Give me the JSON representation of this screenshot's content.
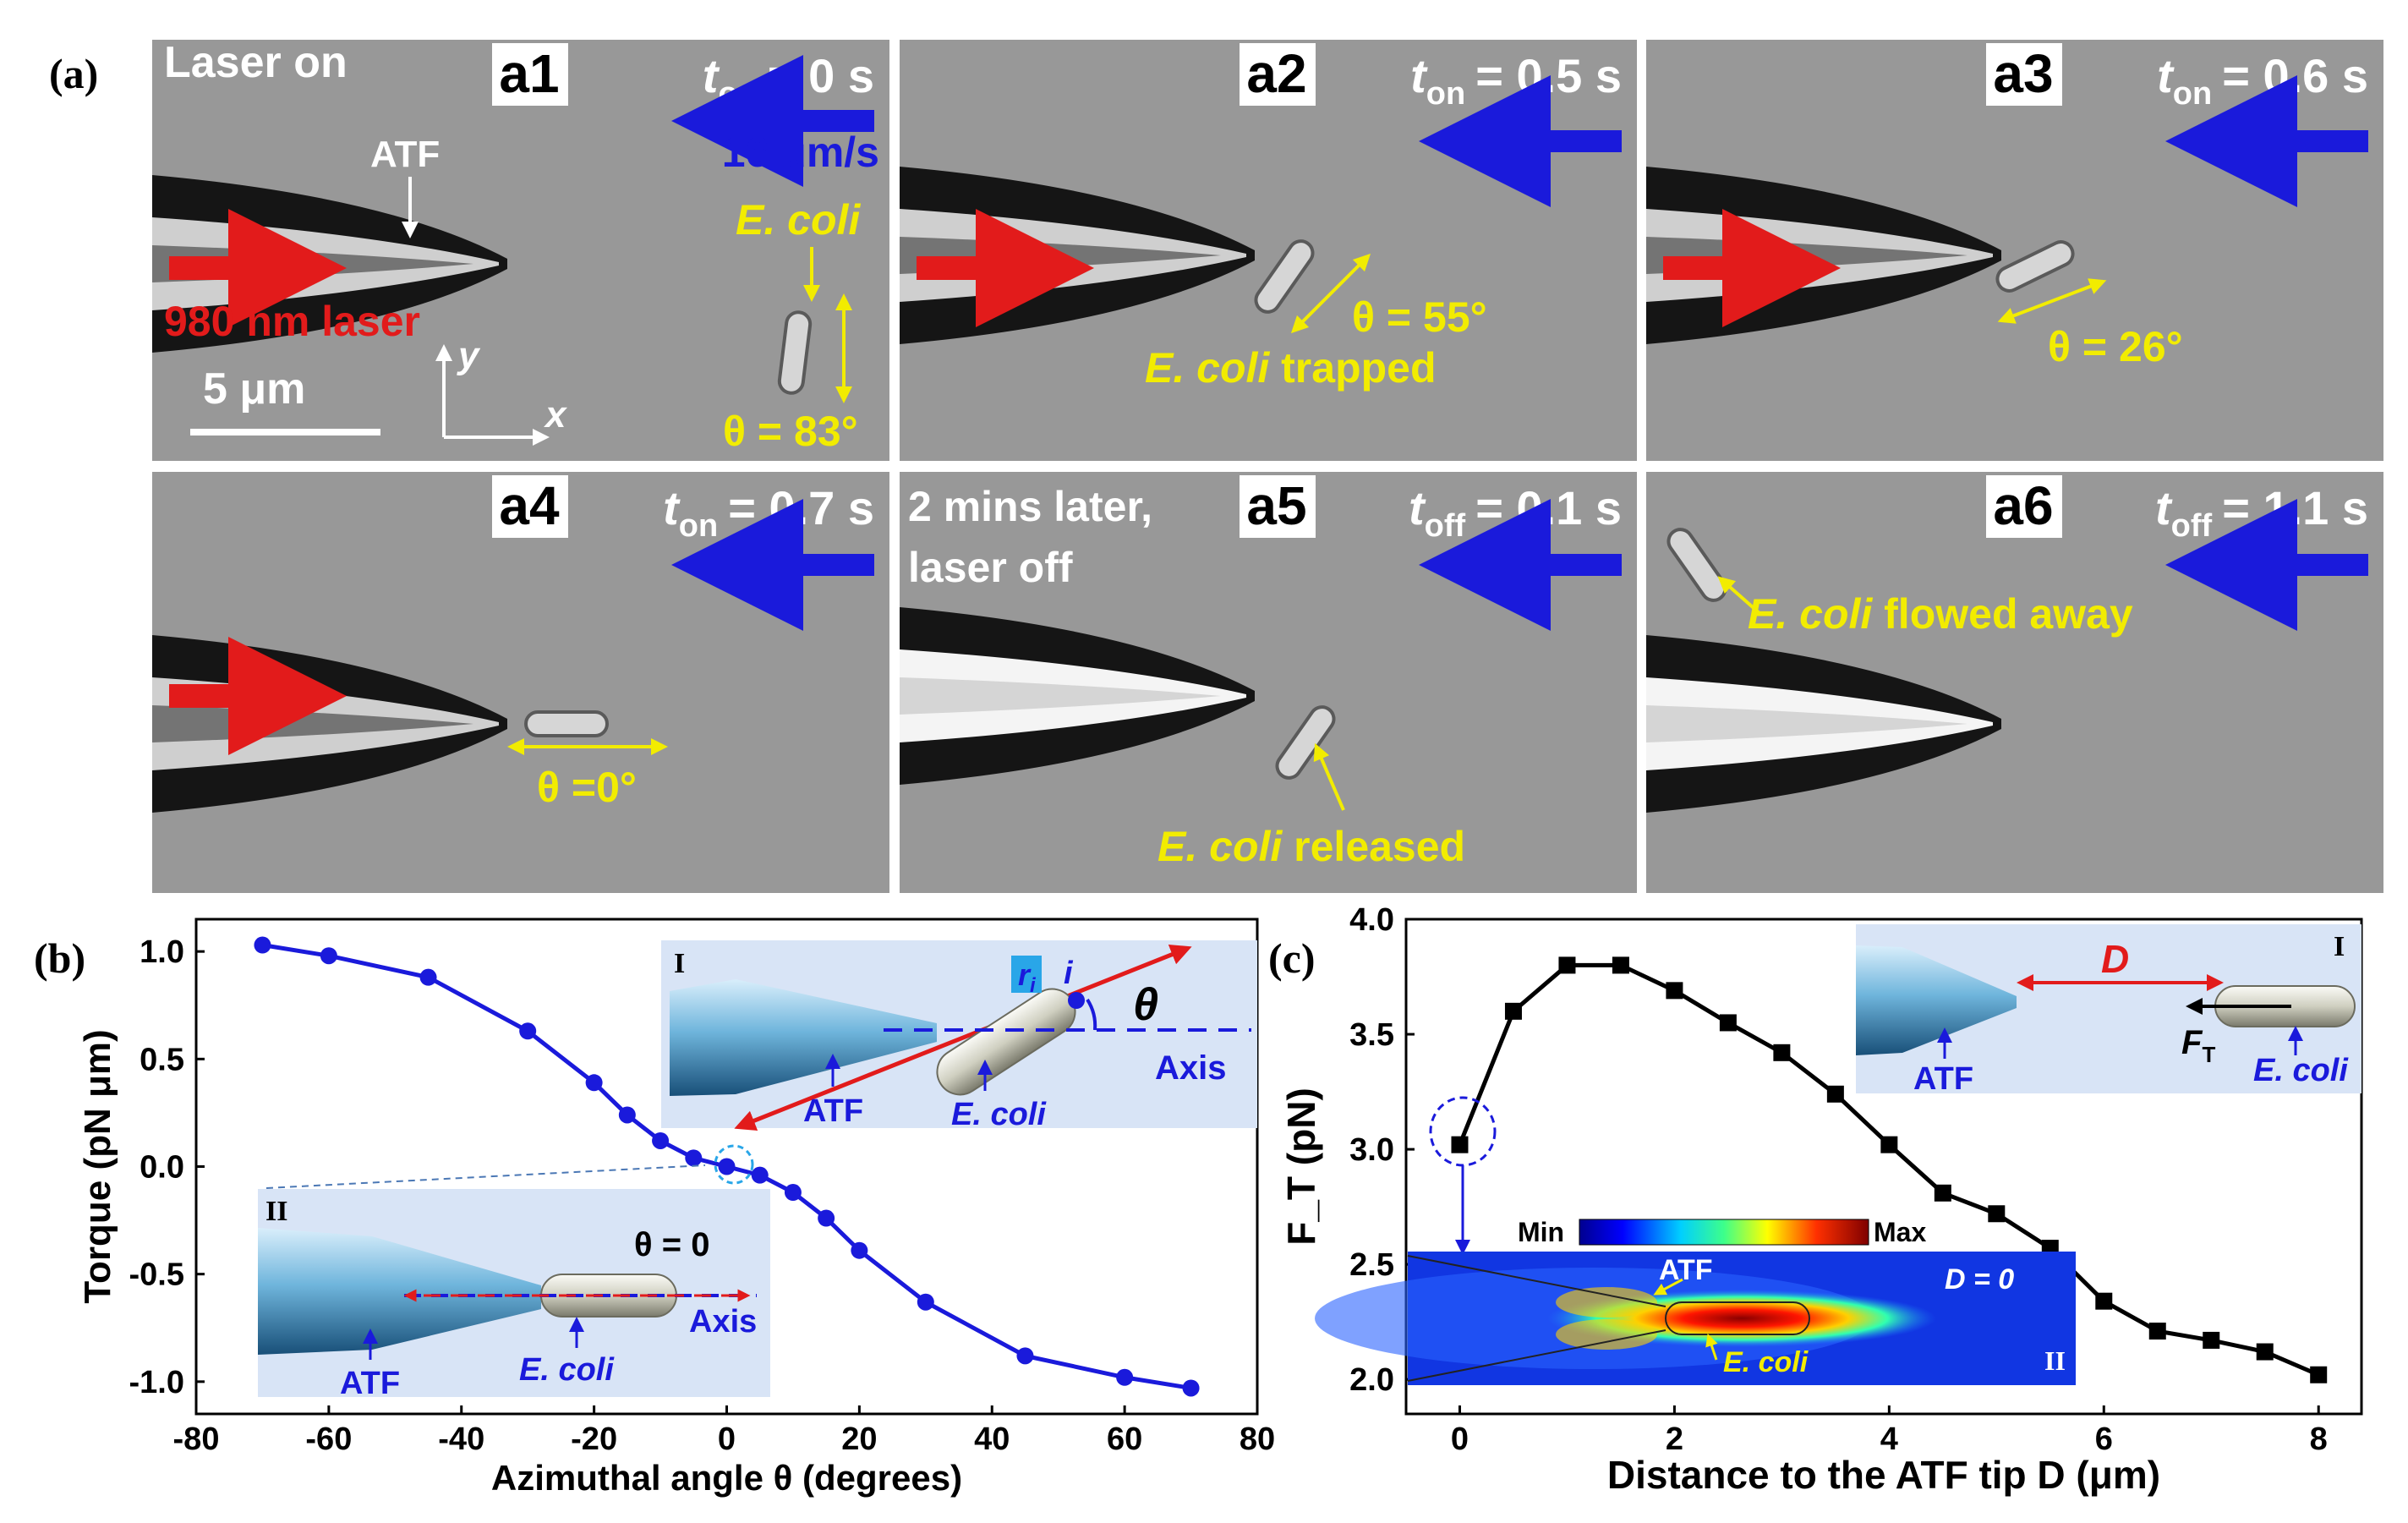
{
  "panel_a": {
    "label": "(a)",
    "frames": [
      {
        "tag": "a1",
        "time_var": "t",
        "time_sub": "on",
        "time_val": "= 0 s",
        "flow_speed": "16 μm/s",
        "note": "Laser on",
        "atf": "ATF",
        "laser": "980 nm laser",
        "ecoli": "E. coli",
        "theta": "θ = 83°",
        "scale": "5 μm",
        "ax_y": "y",
        "ax_x": "x"
      },
      {
        "tag": "a2",
        "time_var": "t",
        "time_sub": "on",
        "time_val": "= 0.5 s",
        "theta": "θ = 55°",
        "caption_i": "E. coli",
        "caption": " trapped"
      },
      {
        "tag": "a3",
        "time_var": "t",
        "time_sub": "on",
        "time_val": "= 0.6 s",
        "theta": "θ = 26°"
      },
      {
        "tag": "a4",
        "time_var": "t",
        "time_sub": "on",
        "time_val": "= 0.7 s",
        "theta": "θ =0°"
      },
      {
        "tag": "a5",
        "time_var": "t",
        "time_sub": "off",
        "time_val": "= 0.1 s",
        "note": "2 mins later,",
        "note2": "laser off",
        "caption_i": "E. coli",
        "caption": " released"
      },
      {
        "tag": "a6",
        "time_var": "t",
        "time_sub": "off",
        "time_val": "= 1.1 s",
        "caption_i": "E. coli",
        "caption": " flowed away"
      }
    ]
  },
  "panel_b": {
    "label": "(b)",
    "inset1": {
      "roman": "I",
      "atf": "ATF",
      "ecoli": "E. coli",
      "axis": "Axis",
      "theta": "θ",
      "r": "r",
      "r_sub": "i",
      "i": "i"
    },
    "inset2": {
      "roman": "II",
      "atf": "ATF",
      "ecoli": "E. coli",
      "axis": "Axis",
      "theta": "θ = 0"
    }
  },
  "panel_c": {
    "label": "(c)",
    "inset1": {
      "roman": "I",
      "D": "D",
      "F": "F",
      "F_sub": "T",
      "atf": "ATF",
      "ecoli": "E. coli"
    },
    "inset2": {
      "roman": "II",
      "min": "Min",
      "max": "Max",
      "atf": "ATF",
      "ecoli": "E. coli",
      "dlabel": "D = 0"
    }
  },
  "chart_data": [
    {
      "type": "line",
      "title": "",
      "xlabel": "Azimuthal angle θ (degrees)",
      "ylabel": "Torque (pN μm)",
      "xlim": [
        -80,
        80
      ],
      "ylim": [
        -1.15,
        1.15
      ],
      "xticks": [
        -80,
        -60,
        -40,
        -20,
        0,
        20,
        40,
        60,
        80
      ],
      "yticks": [
        1.0,
        0.5,
        0.0,
        -0.5,
        -1.0
      ],
      "ytick_labels": [
        "1.0",
        "0.5",
        "0.0",
        "-0.5",
        "-1.0"
      ],
      "color": "#1a1adb",
      "x": [
        -70,
        -60,
        -45,
        -30,
        -20,
        -15,
        -10,
        -5,
        0,
        5,
        10,
        15,
        20,
        30,
        45,
        60,
        70
      ],
      "y": [
        1.03,
        0.98,
        0.88,
        0.63,
        0.39,
        0.24,
        0.12,
        0.04,
        0.0,
        -0.04,
        -0.12,
        -0.24,
        -0.39,
        -0.63,
        -0.88,
        -0.98,
        -1.03
      ]
    },
    {
      "type": "line",
      "title": "",
      "xlabel": "Distance to the ATF tip D (μm)",
      "ylabel": "F_T (pN)",
      "xlim": [
        -0.5,
        8.4
      ],
      "ylim": [
        1.85,
        4.0
      ],
      "xticks": [
        0,
        2,
        4,
        6,
        8
      ],
      "yticks": [
        2.0,
        2.5,
        3.0,
        3.5,
        4.0
      ],
      "ytick_labels": [
        "2.0",
        "2.5",
        "3.0",
        "3.5",
        "4.0"
      ],
      "color": "#000000",
      "x": [
        0,
        0.5,
        1,
        1.5,
        2,
        2.5,
        3,
        3.5,
        4,
        4.5,
        5,
        5.5,
        6,
        6.5,
        7,
        7.5,
        8
      ],
      "y": [
        3.02,
        3.6,
        3.8,
        3.8,
        3.69,
        3.55,
        3.42,
        3.24,
        3.02,
        2.81,
        2.72,
        2.57,
        2.34,
        2.21,
        2.17,
        2.12,
        2.02
      ]
    }
  ]
}
